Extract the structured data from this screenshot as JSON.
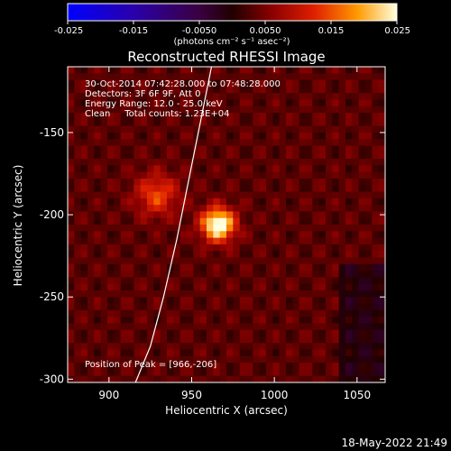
{
  "chart_data": {
    "type": "heatmap",
    "title": "Reconstructed RHESSI Image",
    "xlabel": "Heliocentric X (arcsec)",
    "ylabel": "Heliocentric Y (arcsec)",
    "xlim": [
      875,
      1067
    ],
    "ylim": [
      -302,
      -110
    ],
    "x_ticks": [
      900,
      950,
      1000,
      1050
    ],
    "y_ticks": [
      -150,
      -200,
      -250,
      -300
    ],
    "colorbar": {
      "range": [
        -0.025,
        0.025
      ],
      "ticks": [
        "-0.025",
        "-0.015",
        "-0.0050",
        "0.0050",
        "0.015",
        "0.025"
      ],
      "unit_label": "(photons cm⁻² s⁻¹ asec⁻²)"
    },
    "sources": [
      {
        "x": 966,
        "y": -206,
        "sigma": 7,
        "peak": 0.025
      },
      {
        "x": 929,
        "y": -188,
        "sigma": 9,
        "peak": 0.011
      }
    ],
    "background_level": 0.006,
    "limb_curve": [
      [
        916,
        -302
      ],
      [
        925,
        -280
      ],
      [
        933,
        -250
      ],
      [
        941,
        -215
      ],
      [
        948,
        -180
      ],
      [
        956,
        -140
      ],
      [
        962,
        -110
      ]
    ],
    "annotations": {
      "time_range": "30-Oct-2014 07:42:28.000 to 07:48:28.000",
      "detectors": "Detectors: 3F 6F 9F, Att 0",
      "energy_range": "Energy Range: 12.0 - 25.0 keV",
      "clean_counts": "Clean     Total counts: 1.23E+04",
      "peak_position": "Position of Peak = [966,-206]"
    },
    "footer_timestamp": "18-May-2022 21:49"
  }
}
